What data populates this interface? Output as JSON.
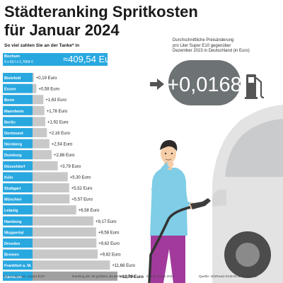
{
  "title_line1": "Städteranking Spritkosten",
  "title_line2": "für Januar 2024",
  "subtitle": "So viel zahlen Sie an der Tanke* in",
  "reference": {
    "city": "Bochum",
    "formula": "4 x 60 l x 1,7064 €",
    "total": "≈409,54 Euro"
  },
  "average_change": {
    "line1": "Durchschnittliche Preisänderung",
    "line2": "pro Liter Super E10 gegenüber",
    "line3": "Dezember 2023 in Deutschland (in Euro)",
    "value": "+0,0168"
  },
  "footer": {
    "note": "*für 4 x 60 Liter „Super E10\"",
    "ranking": "Ranking der 20 größten deutschen Städte",
    "date": "Stand: 01.02.2024",
    "source": "Quelle: infoRoad GmbH/Clever Tanken"
  },
  "colors": {
    "accent": "#29a8e0",
    "bar_grey": "#c8c8c8",
    "bar_dark": "#a0a0a0",
    "display_bg": "#6d7275"
  },
  "chart_data": {
    "type": "bar",
    "orientation": "horizontal",
    "unit": "Euro",
    "categories": [
      "Bielefeld",
      "Essen",
      "Bonn",
      "Mannheim",
      "Berlin",
      "Dortmund",
      "Nürnberg",
      "Duisburg",
      "Düsseldorf",
      "Köln",
      "Stuttgart",
      "München",
      "Leipzig",
      "Hamburg",
      "Wuppertal",
      "Dresden",
      "Bremen",
      "Frankfurt a. M.",
      "Hannover"
    ],
    "values": [
      0.19,
      0.58,
      1.63,
      1.78,
      1.92,
      2.16,
      2.54,
      2.88,
      3.79,
      5.3,
      5.52,
      5.57,
      6.58,
      9.17,
      9.58,
      9.62,
      9.82,
      11.66,
      12.79
    ],
    "labels": [
      "+0,19 Euro",
      "+0,58 Euro",
      "+1,63 Euro",
      "+1,78 Euro",
      "+1,92 Euro",
      "+2,16 Euro",
      "+2,54 Euro",
      "+2,88 Euro",
      "+3,79 Euro",
      "+5,30 Euro",
      "+5,52 Euro",
      "+5,57 Euro",
      "+6,58 Euro",
      "+9,17 Euro",
      "+9,58 Euro",
      "+9,62 Euro",
      "+9,82 Euro",
      "+11,66 Euro",
      "+12,79 Euro"
    ]
  }
}
